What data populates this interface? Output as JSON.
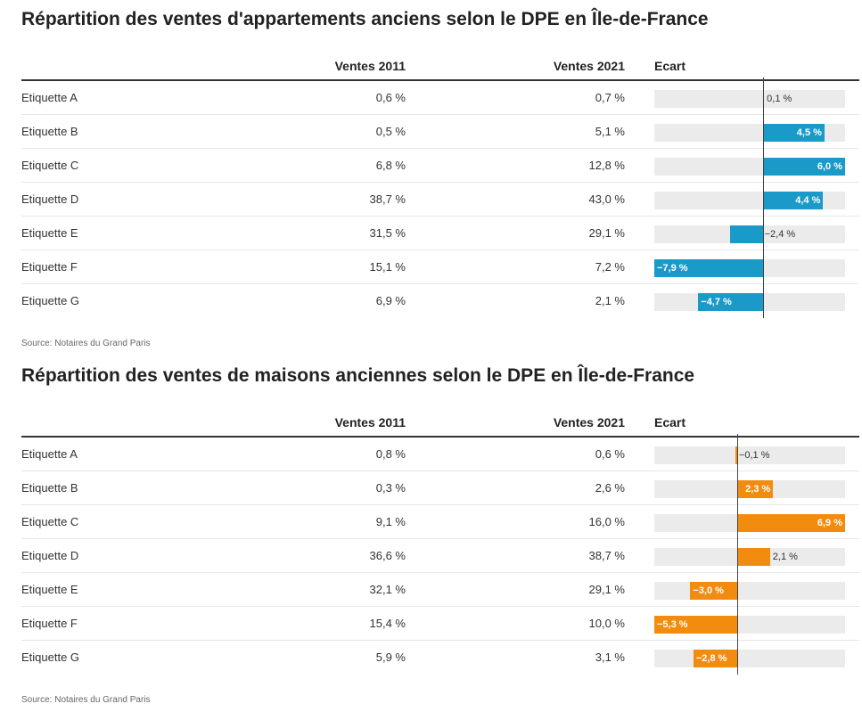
{
  "charts": [
    {
      "title": "Répartition des ventes d'appartements anciens selon le DPE en Île-de-France",
      "columns": {
        "v2011": "Ventes 2011",
        "v2021": "Ventes 2021",
        "ecart": "Ecart"
      },
      "source": "Source: Notaires du Grand Paris",
      "color": "#1a9ac9",
      "rows": [
        {
          "label": "Etiquette A",
          "v2011": "0,6 %",
          "v2021": "0,7 %",
          "ecart_text": "0,1 %"
        },
        {
          "label": "Etiquette B",
          "v2011": "0,5 %",
          "v2021": "5,1 %",
          "ecart_text": "4,5 %"
        },
        {
          "label": "Etiquette C",
          "v2011": "6,8 %",
          "v2021": "12,8 %",
          "ecart_text": "6,0 %"
        },
        {
          "label": "Etiquette D",
          "v2011": "38,7 %",
          "v2021": "43,0 %",
          "ecart_text": "4,4 %"
        },
        {
          "label": "Etiquette E",
          "v2011": "31,5 %",
          "v2021": "29,1 %",
          "ecart_text": "−2,4 %"
        },
        {
          "label": "Etiquette F",
          "v2011": "15,1 %",
          "v2021": "7,2 %",
          "ecart_text": "−7,9 %"
        },
        {
          "label": "Etiquette G",
          "v2011": "6,9 %",
          "v2021": "2,1 %",
          "ecart_text": "−4,7 %"
        }
      ]
    },
    {
      "title": "Répartition des ventes de maisons anciennes selon le DPE en Île-de-France",
      "columns": {
        "v2011": "Ventes 2011",
        "v2021": "Ventes 2021",
        "ecart": "Ecart"
      },
      "source": "Source: Notaires du Grand Paris",
      "color": "#f28c0f",
      "rows": [
        {
          "label": "Etiquette A",
          "v2011": "0,8 %",
          "v2021": "0,6 %",
          "ecart_text": "−0,1 %"
        },
        {
          "label": "Etiquette B",
          "v2011": "0,3 %",
          "v2021": "2,6 %",
          "ecart_text": "2,3 %"
        },
        {
          "label": "Etiquette C",
          "v2011": "9,1 %",
          "v2021": "16,0 %",
          "ecart_text": "6,9 %"
        },
        {
          "label": "Etiquette D",
          "v2011": "36,6 %",
          "v2021": "38,7 %",
          "ecart_text": "2,1 %"
        },
        {
          "label": "Etiquette E",
          "v2011": "32,1 %",
          "v2021": "29,1 %",
          "ecart_text": "−3,0 %"
        },
        {
          "label": "Etiquette F",
          "v2011": "15,4 %",
          "v2021": "10,0 %",
          "ecart_text": "−5,3 %"
        },
        {
          "label": "Etiquette G",
          "v2011": "5,9 %",
          "v2021": "3,1 %",
          "ecart_text": "−2,8 %"
        }
      ]
    }
  ],
  "chart_data": [
    {
      "type": "table",
      "title": "Répartition des ventes d'appartements anciens selon le DPE en Île-de-France",
      "categories": [
        "Etiquette A",
        "Etiquette B",
        "Etiquette C",
        "Etiquette D",
        "Etiquette E",
        "Etiquette F",
        "Etiquette G"
      ],
      "series": [
        {
          "name": "Ventes 2011",
          "values": [
            0.6,
            0.5,
            6.8,
            38.7,
            31.5,
            15.1,
            6.9
          ]
        },
        {
          "name": "Ventes 2021",
          "values": [
            0.7,
            5.1,
            12.8,
            43.0,
            29.1,
            7.2,
            2.1
          ]
        },
        {
          "name": "Ecart",
          "values": [
            0.1,
            4.5,
            6.0,
            4.4,
            -2.4,
            -7.9,
            -4.7
          ]
        }
      ],
      "ecart_range": [
        -7.9,
        6.0
      ]
    },
    {
      "type": "table",
      "title": "Répartition des ventes de maisons anciennes selon le DPE en Île-de-France",
      "categories": [
        "Etiquette A",
        "Etiquette B",
        "Etiquette C",
        "Etiquette D",
        "Etiquette E",
        "Etiquette F",
        "Etiquette G"
      ],
      "series": [
        {
          "name": "Ventes 2011",
          "values": [
            0.8,
            0.3,
            9.1,
            36.6,
            32.1,
            15.4,
            5.9
          ]
        },
        {
          "name": "Ventes 2021",
          "values": [
            0.6,
            2.6,
            16.0,
            38.7,
            29.1,
            10.0,
            3.1
          ]
        },
        {
          "name": "Ecart",
          "values": [
            -0.1,
            2.3,
            6.9,
            2.1,
            -3.0,
            -5.3,
            -2.8
          ]
        }
      ],
      "ecart_range": [
        -5.3,
        6.9
      ]
    }
  ]
}
